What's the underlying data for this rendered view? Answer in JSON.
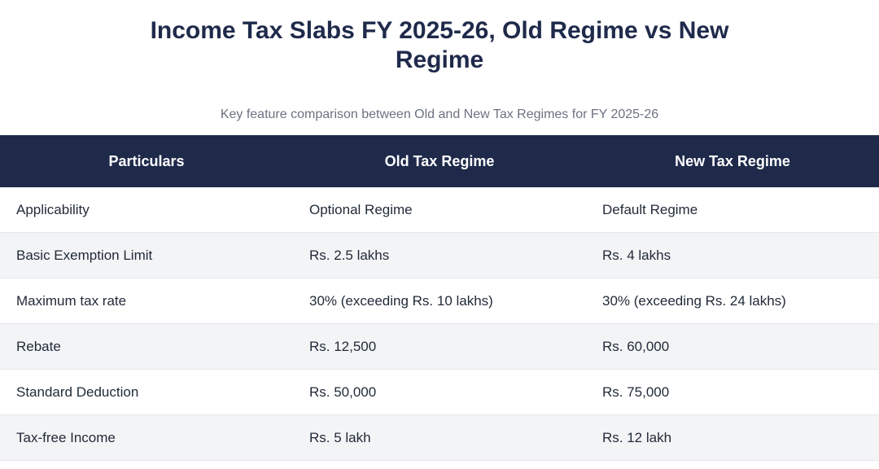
{
  "title": "Income Tax Slabs FY 2025-26, Old Regime vs New Regime",
  "subtitle": "Key feature comparison between Old and New Tax Regimes for FY 2025-26",
  "table": {
    "headers": [
      "Particulars",
      "Old Tax Regime",
      "New Tax Regime"
    ],
    "rows": [
      [
        "Applicability",
        "Optional Regime",
        "Default Regime"
      ],
      [
        "Basic Exemption Limit",
        "Rs. 2.5 lakhs",
        "Rs. 4 lakhs"
      ],
      [
        "Maximum tax rate",
        "30% (exceeding Rs. 10 lakhs)",
        "30% (exceeding Rs. 24 lakhs)"
      ],
      [
        "Rebate",
        "Rs. 12,500",
        "Rs. 60,000"
      ],
      [
        "Standard Deduction",
        "Rs. 50,000",
        "Rs. 75,000"
      ],
      [
        "Tax-free Income",
        "Rs. 5 lakh",
        "Rs. 12 lakh"
      ]
    ]
  },
  "colors": {
    "header_bg": "#1f2a4b",
    "title": "#1f2a4b",
    "alt_row_bg": "#f3f4f6"
  }
}
